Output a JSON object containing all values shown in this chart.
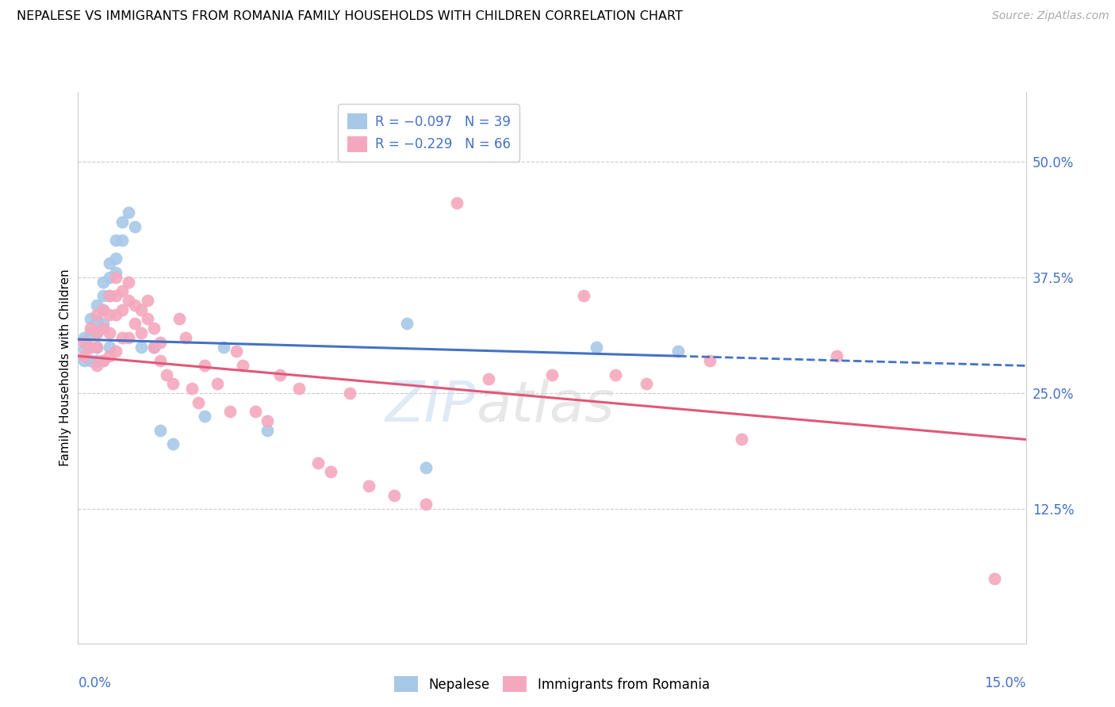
{
  "title": "NEPALESE VS IMMIGRANTS FROM ROMANIA FAMILY HOUSEHOLDS WITH CHILDREN CORRELATION CHART",
  "source": "Source: ZipAtlas.com",
  "ylabel": "Family Households with Children",
  "ytick_labels": [
    "50.0%",
    "37.5%",
    "25.0%",
    "12.5%"
  ],
  "ytick_values": [
    0.5,
    0.375,
    0.25,
    0.125
  ],
  "xlim": [
    0.0,
    0.15
  ],
  "ylim": [
    -0.02,
    0.575
  ],
  "nepalese_color": "#a8c8e8",
  "romania_color": "#f4a8be",
  "trendline_nepalese_color": "#4472c4",
  "trendline_romania_color": "#e05878",
  "nepalese_x": [
    0.001,
    0.001,
    0.001,
    0.002,
    0.002,
    0.002,
    0.002,
    0.003,
    0.003,
    0.003,
    0.003,
    0.003,
    0.004,
    0.004,
    0.004,
    0.004,
    0.004,
    0.005,
    0.005,
    0.005,
    0.005,
    0.006,
    0.006,
    0.006,
    0.007,
    0.007,
    0.008,
    0.009,
    0.01,
    0.012,
    0.013,
    0.015,
    0.02,
    0.023,
    0.03,
    0.052,
    0.055,
    0.082,
    0.095
  ],
  "nepalese_y": [
    0.31,
    0.298,
    0.285,
    0.33,
    0.315,
    0.3,
    0.285,
    0.345,
    0.328,
    0.315,
    0.3,
    0.285,
    0.37,
    0.355,
    0.34,
    0.325,
    0.285,
    0.39,
    0.375,
    0.355,
    0.3,
    0.415,
    0.395,
    0.38,
    0.435,
    0.415,
    0.445,
    0.43,
    0.3,
    0.3,
    0.21,
    0.195,
    0.225,
    0.3,
    0.21,
    0.325,
    0.17,
    0.3,
    0.295
  ],
  "romania_x": [
    0.001,
    0.001,
    0.002,
    0.002,
    0.003,
    0.003,
    0.003,
    0.003,
    0.004,
    0.004,
    0.004,
    0.005,
    0.005,
    0.005,
    0.005,
    0.006,
    0.006,
    0.006,
    0.006,
    0.007,
    0.007,
    0.007,
    0.008,
    0.008,
    0.008,
    0.009,
    0.009,
    0.01,
    0.01,
    0.011,
    0.011,
    0.012,
    0.012,
    0.013,
    0.013,
    0.014,
    0.015,
    0.016,
    0.017,
    0.018,
    0.019,
    0.02,
    0.022,
    0.024,
    0.025,
    0.026,
    0.028,
    0.03,
    0.032,
    0.035,
    0.038,
    0.04,
    0.043,
    0.046,
    0.05,
    0.055,
    0.06,
    0.065,
    0.075,
    0.08,
    0.085,
    0.09,
    0.1,
    0.105,
    0.12,
    0.145
  ],
  "romania_y": [
    0.305,
    0.29,
    0.32,
    0.3,
    0.335,
    0.315,
    0.3,
    0.28,
    0.34,
    0.32,
    0.285,
    0.355,
    0.335,
    0.315,
    0.29,
    0.375,
    0.355,
    0.335,
    0.295,
    0.36,
    0.34,
    0.31,
    0.37,
    0.35,
    0.31,
    0.345,
    0.325,
    0.34,
    0.315,
    0.35,
    0.33,
    0.32,
    0.3,
    0.305,
    0.285,
    0.27,
    0.26,
    0.33,
    0.31,
    0.255,
    0.24,
    0.28,
    0.26,
    0.23,
    0.295,
    0.28,
    0.23,
    0.22,
    0.27,
    0.255,
    0.175,
    0.165,
    0.25,
    0.15,
    0.14,
    0.13,
    0.455,
    0.265,
    0.27,
    0.355,
    0.27,
    0.26,
    0.285,
    0.2,
    0.29,
    0.05
  ],
  "trendline_nepalese_x0": 0.0,
  "trendline_nepalese_y0": 0.308,
  "trendline_nepalese_x1": 0.095,
  "trendline_nepalese_y1": 0.29,
  "trendline_nepalese_dash_x0": 0.095,
  "trendline_nepalese_dash_x1": 0.15,
  "trendline_romania_x0": 0.0,
  "trendline_romania_y0": 0.29,
  "trendline_romania_x1": 0.15,
  "trendline_romania_y1": 0.2
}
